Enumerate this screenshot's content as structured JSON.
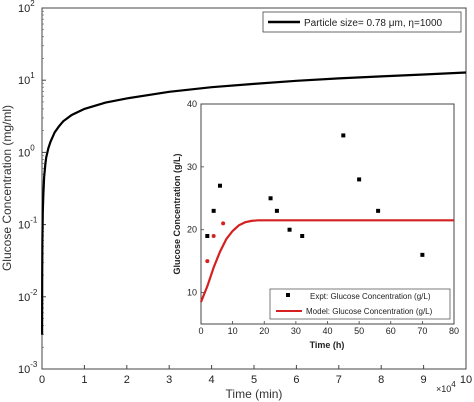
{
  "chart_data": [
    {
      "type": "line",
      "xlabel": "Time (min)",
      "ylabel": "Glucose Concentration (mg/ml)",
      "x_multiplier_label": "×10",
      "x_multiplier_exponent": "4",
      "yscale": "log",
      "xlim": [
        0,
        10
      ],
      "ylim": [
        0.001,
        100
      ],
      "x_ticks": [
        "0",
        "1",
        "2",
        "3",
        "4",
        "5",
        "6",
        "7",
        "8",
        "9",
        "10"
      ],
      "y_ticks": [
        {
          "base": "10",
          "exp": "-3"
        },
        {
          "base": "10",
          "exp": "-2"
        },
        {
          "base": "10",
          "exp": "-1"
        },
        {
          "base": "10",
          "exp": "0"
        },
        {
          "base": "10",
          "exp": "1"
        },
        {
          "base": "10",
          "exp": "2"
        }
      ],
      "legend": {
        "position": "top-right",
        "label": "Particle size= 0.78 μm, η=1000"
      },
      "series": [
        {
          "name": "Particle size= 0.78 μm, η=1000",
          "color": "#000000",
          "x": [
            0.002,
            0.005,
            0.01,
            0.02,
            0.03,
            0.05,
            0.08,
            0.1,
            0.15,
            0.2,
            0.3,
            0.4,
            0.5,
            0.7,
            1.0,
            1.5,
            2.0,
            3.0,
            4.0,
            5.0,
            6.0,
            7.0,
            8.0,
            9.0,
            10.0
          ],
          "y": [
            0.003,
            0.02,
            0.06,
            0.15,
            0.25,
            0.45,
            0.7,
            0.85,
            1.15,
            1.4,
            1.9,
            2.3,
            2.7,
            3.3,
            4.0,
            4.9,
            5.6,
            6.9,
            8.0,
            8.9,
            9.8,
            10.6,
            11.3,
            12.0,
            12.8
          ]
        }
      ]
    },
    {
      "type": "scatter",
      "xlabel": "Time (h)",
      "ylabel": "Glucose Concentration (g/L)",
      "xlim": [
        0,
        80
      ],
      "ylim": [
        5,
        40
      ],
      "x_ticks": [
        0,
        10,
        20,
        30,
        40,
        50,
        60,
        70,
        80
      ],
      "y_ticks": [
        10,
        20,
        30,
        40
      ],
      "legend": {
        "position": "bottom-right"
      },
      "series": [
        {
          "name": "Expt: Glucose Concentration (g/L)",
          "color": "#000000",
          "marker": "square",
          "x": [
            2,
            4,
            6,
            22,
            24,
            28,
            32,
            45,
            50,
            56,
            70
          ],
          "y": [
            19,
            23,
            27,
            25,
            23,
            20,
            19,
            35,
            28,
            23,
            16
          ]
        },
        {
          "name": "Model: Glucose Concentration (g/L)",
          "color": "#d42020",
          "x": [
            0,
            2,
            4,
            6,
            8,
            10,
            12,
            14,
            16,
            18,
            20,
            30,
            40,
            50,
            60,
            70,
            80
          ],
          "y": [
            8.5,
            11,
            14,
            16.5,
            18.5,
            19.8,
            20.7,
            21.2,
            21.4,
            21.5,
            21.5,
            21.5,
            21.5,
            21.5,
            21.5,
            21.5,
            21.5
          ]
        },
        {
          "name": "",
          "color": "#d42020",
          "marker": "circle",
          "x": [
            2,
            4,
            7
          ],
          "y": [
            15,
            19,
            21
          ]
        }
      ]
    }
  ]
}
